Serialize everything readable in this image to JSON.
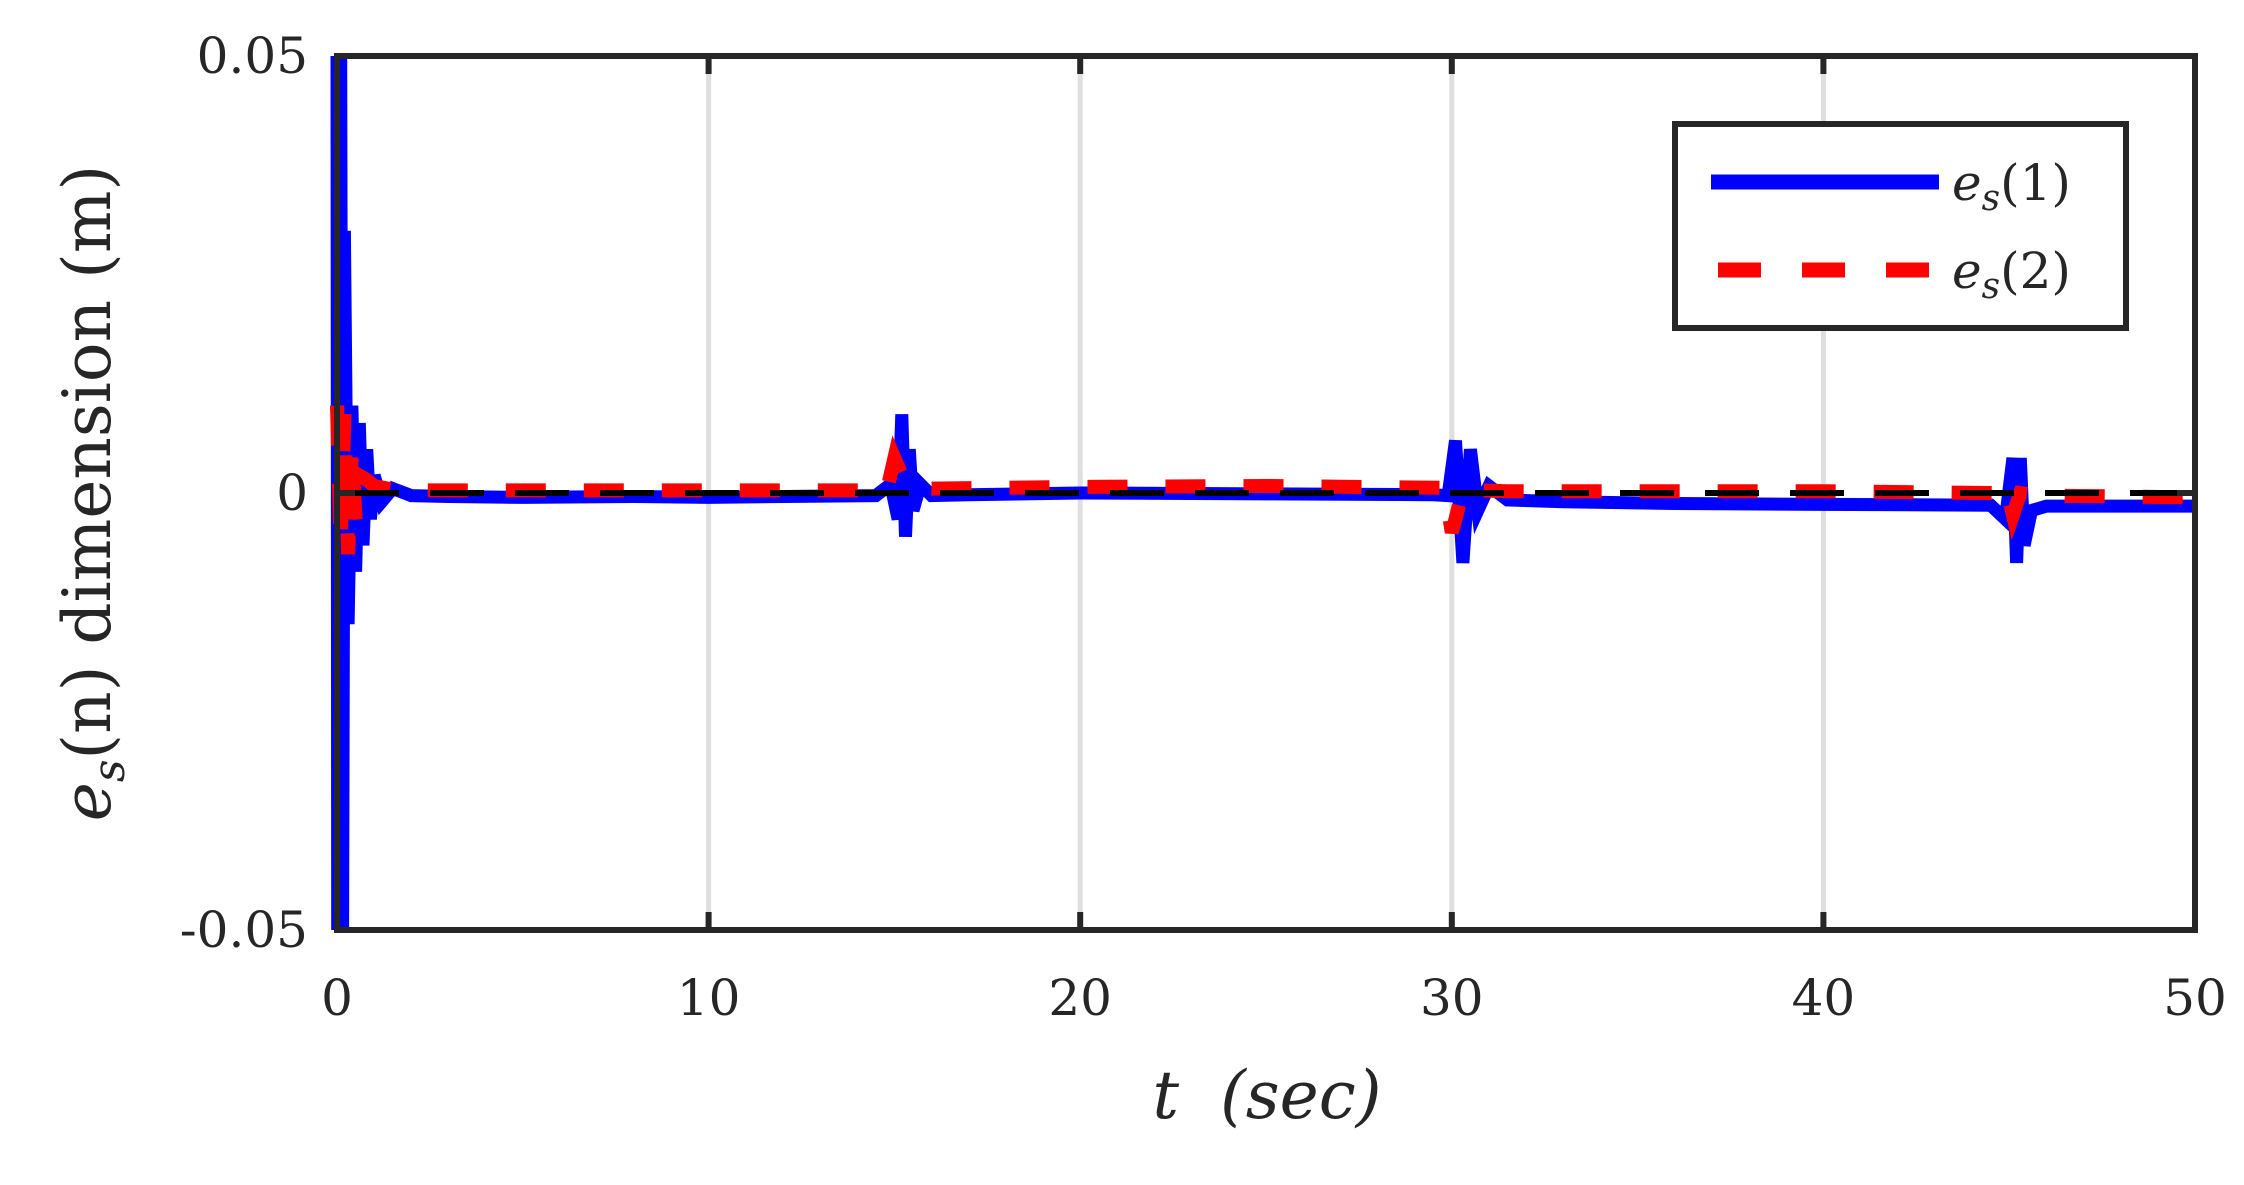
{
  "chart_data": {
    "type": "line",
    "title": "",
    "xlabel": "t (sec)",
    "ylabel": "e_s(n) dimension (m)",
    "xlim": [
      0,
      50
    ],
    "ylim": [
      -0.05,
      0.05
    ],
    "xticks": [
      0,
      10,
      20,
      30,
      40,
      50
    ],
    "xtick_labels": [
      "0",
      "10",
      "20",
      "30",
      "40",
      "50"
    ],
    "yticks": [
      -0.05,
      0,
      0.05
    ],
    "ytick_labels": [
      "-0.05",
      "0",
      "0.05"
    ],
    "grid": {
      "x": true,
      "y": false,
      "color": "#dfdfdf"
    },
    "legend": {
      "position": "upper right",
      "entries": [
        "e_s(1)",
        "e_s(2)"
      ]
    },
    "reference_line": {
      "y": 0,
      "style": "dashed",
      "color": "#000000"
    },
    "series": [
      {
        "name": "e_s(1)",
        "color": "#0000ff",
        "style": "solid",
        "x": [
          0,
          0.02,
          0.05,
          0.08,
          0.1,
          0.15,
          0.2,
          0.3,
          0.4,
          0.5,
          0.6,
          0.7,
          0.8,
          0.9,
          1.0,
          1.2,
          1.5,
          2,
          3,
          5,
          8,
          10,
          12,
          14.5,
          14.9,
          15.1,
          15.2,
          15.3,
          15.4,
          15.5,
          15.7,
          16,
          17,
          20,
          25,
          29.5,
          29.9,
          30.1,
          30.3,
          30.5,
          30.7,
          31,
          31.5,
          33,
          36,
          40,
          44.5,
          44.9,
          45.1,
          45.2,
          45.3,
          45.4,
          45.6,
          46,
          48,
          50
        ],
        "y": [
          0.05,
          -0.05,
          0.05,
          -0.05,
          0.05,
          -0.05,
          0.03,
          -0.015,
          0.01,
          -0.009,
          0.008,
          -0.006,
          0.005,
          -0.003,
          0.002,
          -0.001,
          0.0005,
          -0.0003,
          -0.0004,
          -0.0005,
          -0.0004,
          -0.0005,
          -0.0004,
          -0.0003,
          0.001,
          -0.003,
          0.009,
          -0.005,
          0.005,
          -0.002,
          0.001,
          -0.0003,
          -0.0002,
          0.0,
          -0.0001,
          -0.0002,
          -0.0003,
          0.006,
          -0.008,
          0.005,
          -0.002,
          0.0008,
          -0.0008,
          -0.001,
          -0.0012,
          -0.0013,
          -0.0014,
          -0.003,
          0.004,
          -0.008,
          0.004,
          -0.006,
          -0.002,
          -0.0015,
          -0.0015,
          -0.0015
        ]
      },
      {
        "name": "e_s(2)",
        "color": "#ff0000",
        "style": "dashed",
        "x": [
          0,
          0.1,
          0.2,
          0.3,
          0.4,
          0.5,
          0.6,
          0.8,
          1.0,
          1.5,
          2,
          5,
          10,
          14.8,
          15.0,
          15.2,
          15.4,
          15.6,
          16,
          20,
          25,
          29.8,
          30.0,
          30.1,
          30.3,
          30.5,
          30.8,
          31.5,
          35,
          40,
          44.6,
          44.9,
          45.1,
          45.3,
          45.6,
          46,
          48,
          50
        ],
        "y": [
          0.01,
          -0.006,
          0.009,
          -0.007,
          0.005,
          -0.003,
          0.002,
          0.0015,
          0.0008,
          0.0004,
          0.0003,
          0.0003,
          0.0003,
          0.0003,
          0.004,
          0.002,
          0.001,
          0.0006,
          0.0005,
          0.0007,
          0.0008,
          0.0006,
          -0.0045,
          -0.003,
          0.0005,
          0.0004,
          0.0003,
          0.0002,
          0.0002,
          0.0002,
          0.0,
          0.001,
          -0.0025,
          0.0,
          -0.0002,
          -0.0003,
          -0.0004,
          -0.0005
        ]
      }
    ]
  },
  "axes": {
    "x_label_main": "t",
    "x_label_unit": "(sec)",
    "y_label_var": "e",
    "y_label_sub": "s",
    "y_label_rest": "(n) dimension (m)"
  },
  "legend": {
    "items": [
      {
        "var": "e",
        "sub": "s",
        "arg": "(1)",
        "color": "#0000ff",
        "dash": "solid"
      },
      {
        "var": "e",
        "sub": "s",
        "arg": "(2)",
        "color": "#ff0000",
        "dash": "dashed"
      }
    ]
  },
  "colors": {
    "axis": "#262626",
    "grid": "#dfdfdf",
    "background": "#ffffff"
  }
}
